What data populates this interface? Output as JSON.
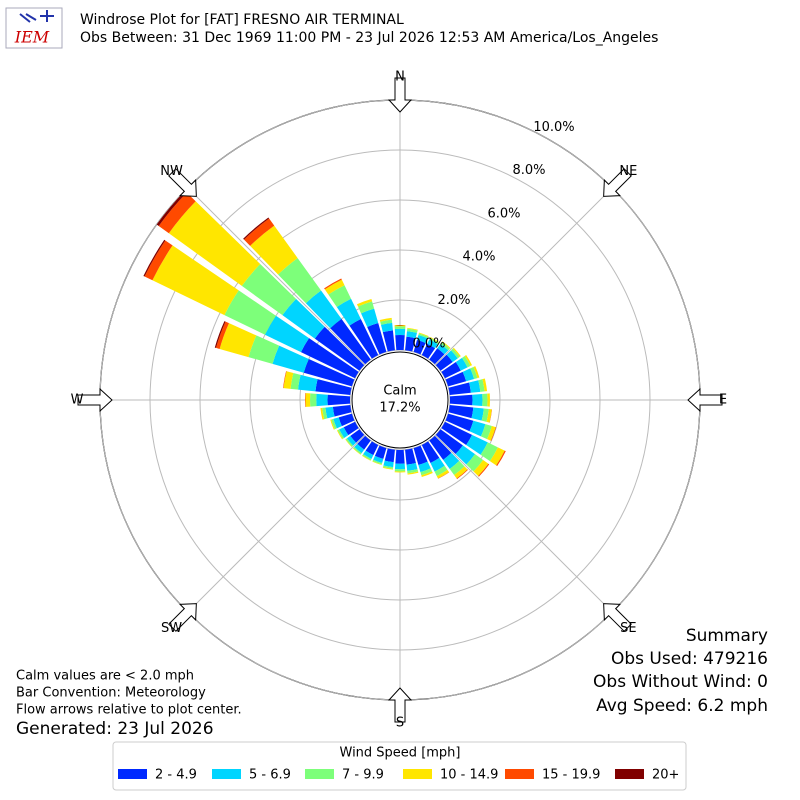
{
  "logo": "IEM",
  "chart_data": {
    "type": "windrose",
    "title": "Windrose Plot for [FAT] FRESNO AIR TERMINAL",
    "subtitle": "Obs Between: 31 Dec 1969 11:00 PM - 23 Jul 2026 12:53 AM America/Los_Angeles",
    "direction_labels": [
      "N",
      "NE",
      "E",
      "SE",
      "S",
      "SW",
      "W",
      "NW"
    ],
    "x": [
      0,
      10,
      20,
      30,
      40,
      50,
      60,
      70,
      80,
      90,
      100,
      110,
      120,
      130,
      140,
      150,
      160,
      170,
      180,
      190,
      200,
      210,
      220,
      230,
      240,
      250,
      260,
      270,
      280,
      290,
      300,
      310,
      320,
      330,
      340,
      350
    ],
    "ylim": [
      0,
      10
    ],
    "yticks": [
      {
        "value": 0,
        "label": "0.0%"
      },
      {
        "value": 2,
        "label": "2.0%"
      },
      {
        "value": 4,
        "label": "4.0%"
      },
      {
        "value": 6,
        "label": "6.0%"
      },
      {
        "value": 8,
        "label": "8.0%"
      },
      {
        "value": 10,
        "label": "10.0%"
      }
    ],
    "grid": true,
    "calm": {
      "label": "Calm",
      "value": 17.2,
      "value_label": "17.2%"
    },
    "legend_title": "Wind Speed [mph]",
    "series": [
      {
        "name": "2 - 4.9",
        "color": "#0029ff",
        "values": [
          0.6,
          0.55,
          0.5,
          0.5,
          0.55,
          0.6,
          0.7,
          0.75,
          0.85,
          0.9,
          0.95,
          1.05,
          1.2,
          1.1,
          0.95,
          0.8,
          0.7,
          0.6,
          0.55,
          0.5,
          0.45,
          0.45,
          0.45,
          0.45,
          0.5,
          0.55,
          0.7,
          0.9,
          1.4,
          2.0,
          2.4,
          2.2,
          2.0,
          1.6,
          1.2,
          0.8
        ]
      },
      {
        "name": "5 - 6.9",
        "color": "#00d5ff",
        "values": [
          0.25,
          0.22,
          0.2,
          0.2,
          0.22,
          0.25,
          0.3,
          0.33,
          0.38,
          0.4,
          0.42,
          0.5,
          0.7,
          0.6,
          0.45,
          0.38,
          0.3,
          0.25,
          0.22,
          0.2,
          0.17,
          0.17,
          0.17,
          0.17,
          0.2,
          0.22,
          0.3,
          0.45,
          0.7,
          1.3,
          1.6,
          1.6,
          1.4,
          0.9,
          0.6,
          0.3
        ]
      },
      {
        "name": "7 - 9.9",
        "color": "#7dff7a",
        "values": [
          0.1,
          0.1,
          0.07,
          0.07,
          0.09,
          0.1,
          0.13,
          0.14,
          0.17,
          0.2,
          0.2,
          0.27,
          0.45,
          0.4,
          0.3,
          0.2,
          0.13,
          0.1,
          0.09,
          0.07,
          0.06,
          0.06,
          0.06,
          0.06,
          0.07,
          0.09,
          0.13,
          0.25,
          0.3,
          1.0,
          1.8,
          2.0,
          1.6,
          0.6,
          0.3,
          0.13
        ]
      },
      {
        "name": "10 - 14.9",
        "color": "#ffe600",
        "values": [
          0.05,
          0.03,
          0.03,
          0.03,
          0.04,
          0.05,
          0.07,
          0.08,
          0.1,
          0.1,
          0.12,
          0.16,
          0.3,
          0.26,
          0.17,
          0.11,
          0.07,
          0.05,
          0.04,
          0.03,
          0.02,
          0.02,
          0.02,
          0.02,
          0.03,
          0.04,
          0.07,
          0.18,
          0.28,
          1.2,
          3.2,
          3.6,
          1.6,
          0.25,
          0.1,
          0.07
        ]
      },
      {
        "name": "15 - 19.9",
        "color": "#ff4a00",
        "values": [
          0,
          0,
          0,
          0,
          0,
          0,
          0,
          0,
          0,
          0,
          0.01,
          0.02,
          0.05,
          0.04,
          0.03,
          0.01,
          0,
          0,
          0,
          0,
          0,
          0,
          0,
          0,
          0,
          0,
          0,
          0.02,
          0.02,
          0.15,
          0.35,
          0.5,
          0.35,
          0.05,
          0,
          0
        ]
      },
      {
        "name": "20+",
        "color": "#800000",
        "values": [
          0,
          0,
          0,
          0,
          0,
          0,
          0,
          0,
          0,
          0,
          0,
          0,
          0,
          0,
          0,
          0,
          0,
          0,
          0,
          0,
          0,
          0,
          0,
          0,
          0,
          0,
          0,
          0,
          0,
          0.05,
          0.05,
          0.1,
          0.05,
          0,
          0,
          0
        ]
      }
    ],
    "notes": [
      "Calm values are < 2.0 mph",
      "Bar Convention: Meteorology",
      "Flow arrows relative to plot center."
    ],
    "generated": "Generated: 23 Jul 2026",
    "summary": [
      "Summary",
      "Obs Used: 479216",
      "Obs Without Wind: 0",
      "Avg Speed: 6.2 mph"
    ]
  }
}
